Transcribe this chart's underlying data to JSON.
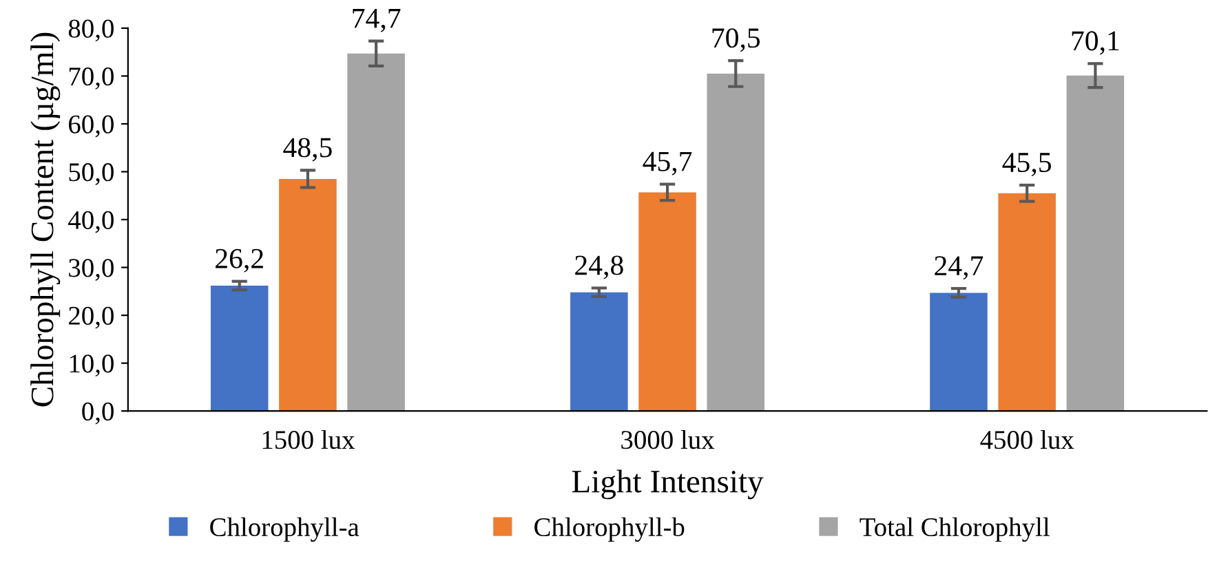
{
  "chart_data": {
    "type": "bar",
    "xlabel": "Light Intensity",
    "ylabel": "Chlorophyll Content (µg/ml)",
    "categories": [
      "1500 lux",
      "3000 lux",
      "4500 lux"
    ],
    "series": [
      {
        "name": "Chlorophyll-a",
        "color": "#4472c4",
        "values": [
          26.2,
          24.8,
          24.7
        ],
        "errors": [
          0.9,
          0.9,
          0.9
        ],
        "value_labels": [
          "26,2",
          "24,8",
          "24,7"
        ]
      },
      {
        "name": "Chlorophyll-b",
        "color": "#ed7d31",
        "values": [
          48.5,
          45.7,
          45.5
        ],
        "errors": [
          1.8,
          1.7,
          1.7
        ],
        "value_labels": [
          "48,5",
          "45,7",
          "45,5"
        ]
      },
      {
        "name": "Total Chlorophyll",
        "color": "#a5a5a5",
        "values": [
          74.7,
          70.5,
          70.1
        ],
        "errors": [
          2.6,
          2.7,
          2.5
        ],
        "value_labels": [
          "74,7",
          "70,5",
          "70,1"
        ]
      }
    ],
    "ylim": [
      0,
      80
    ],
    "yticks": [
      {
        "value": 0,
        "label": "0,0"
      },
      {
        "value": 10,
        "label": "10,0"
      },
      {
        "value": 20,
        "label": "20,0"
      },
      {
        "value": 30,
        "label": "30,0"
      },
      {
        "value": 40,
        "label": "40,0"
      },
      {
        "value": 50,
        "label": "50,0"
      },
      {
        "value": 60,
        "label": "60,0"
      },
      {
        "value": 70,
        "label": "70,0"
      },
      {
        "value": 80,
        "label": "80,0"
      }
    ],
    "grid": false,
    "legend": "bottom"
  }
}
